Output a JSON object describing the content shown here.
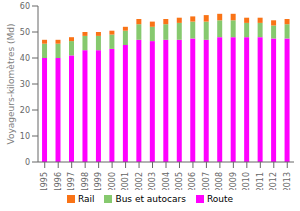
{
  "chart_data": {
    "type": "bar",
    "stacked": true,
    "categories": [
      "1995",
      "1996",
      "1997",
      "1998",
      "1999",
      "2000",
      "2001",
      "2002",
      "2003",
      "2004",
      "2005",
      "2006",
      "2007",
      "2008",
      "2009",
      "2010",
      "2011",
      "2012",
      "2013"
    ],
    "series": [
      {
        "name": "Rail",
        "color": "#f97316",
        "values": [
          1.5,
          1.5,
          1.5,
          1.5,
          1.5,
          1.5,
          1.5,
          2.0,
          2.0,
          2.0,
          2.0,
          2.0,
          2.5,
          2.5,
          2.5,
          2.0,
          2.0,
          2.0,
          2.0
        ]
      },
      {
        "name": "Bus et autocars",
        "color": "#86c96e",
        "values": [
          5.5,
          5.5,
          5.5,
          5.5,
          5.5,
          5.5,
          5.5,
          6.0,
          5.5,
          6.0,
          6.5,
          6.5,
          7.0,
          6.5,
          6.5,
          5.5,
          5.5,
          5.0,
          5.5
        ]
      },
      {
        "name": "Route",
        "color": "#ff00ff",
        "values": [
          40.0,
          40.0,
          41.0,
          43.0,
          43.0,
          43.5,
          45.0,
          47.0,
          46.5,
          47.0,
          47.0,
          47.5,
          47.0,
          48.0,
          48.0,
          48.0,
          48.0,
          47.5,
          47.5
        ]
      }
    ],
    "ylabel": "Voyageurs-kilomètres (Md)",
    "ylim": [
      0,
      60
    ],
    "yticks": [
      0,
      10,
      20,
      30,
      40,
      50,
      60
    ],
    "grid": false
  }
}
